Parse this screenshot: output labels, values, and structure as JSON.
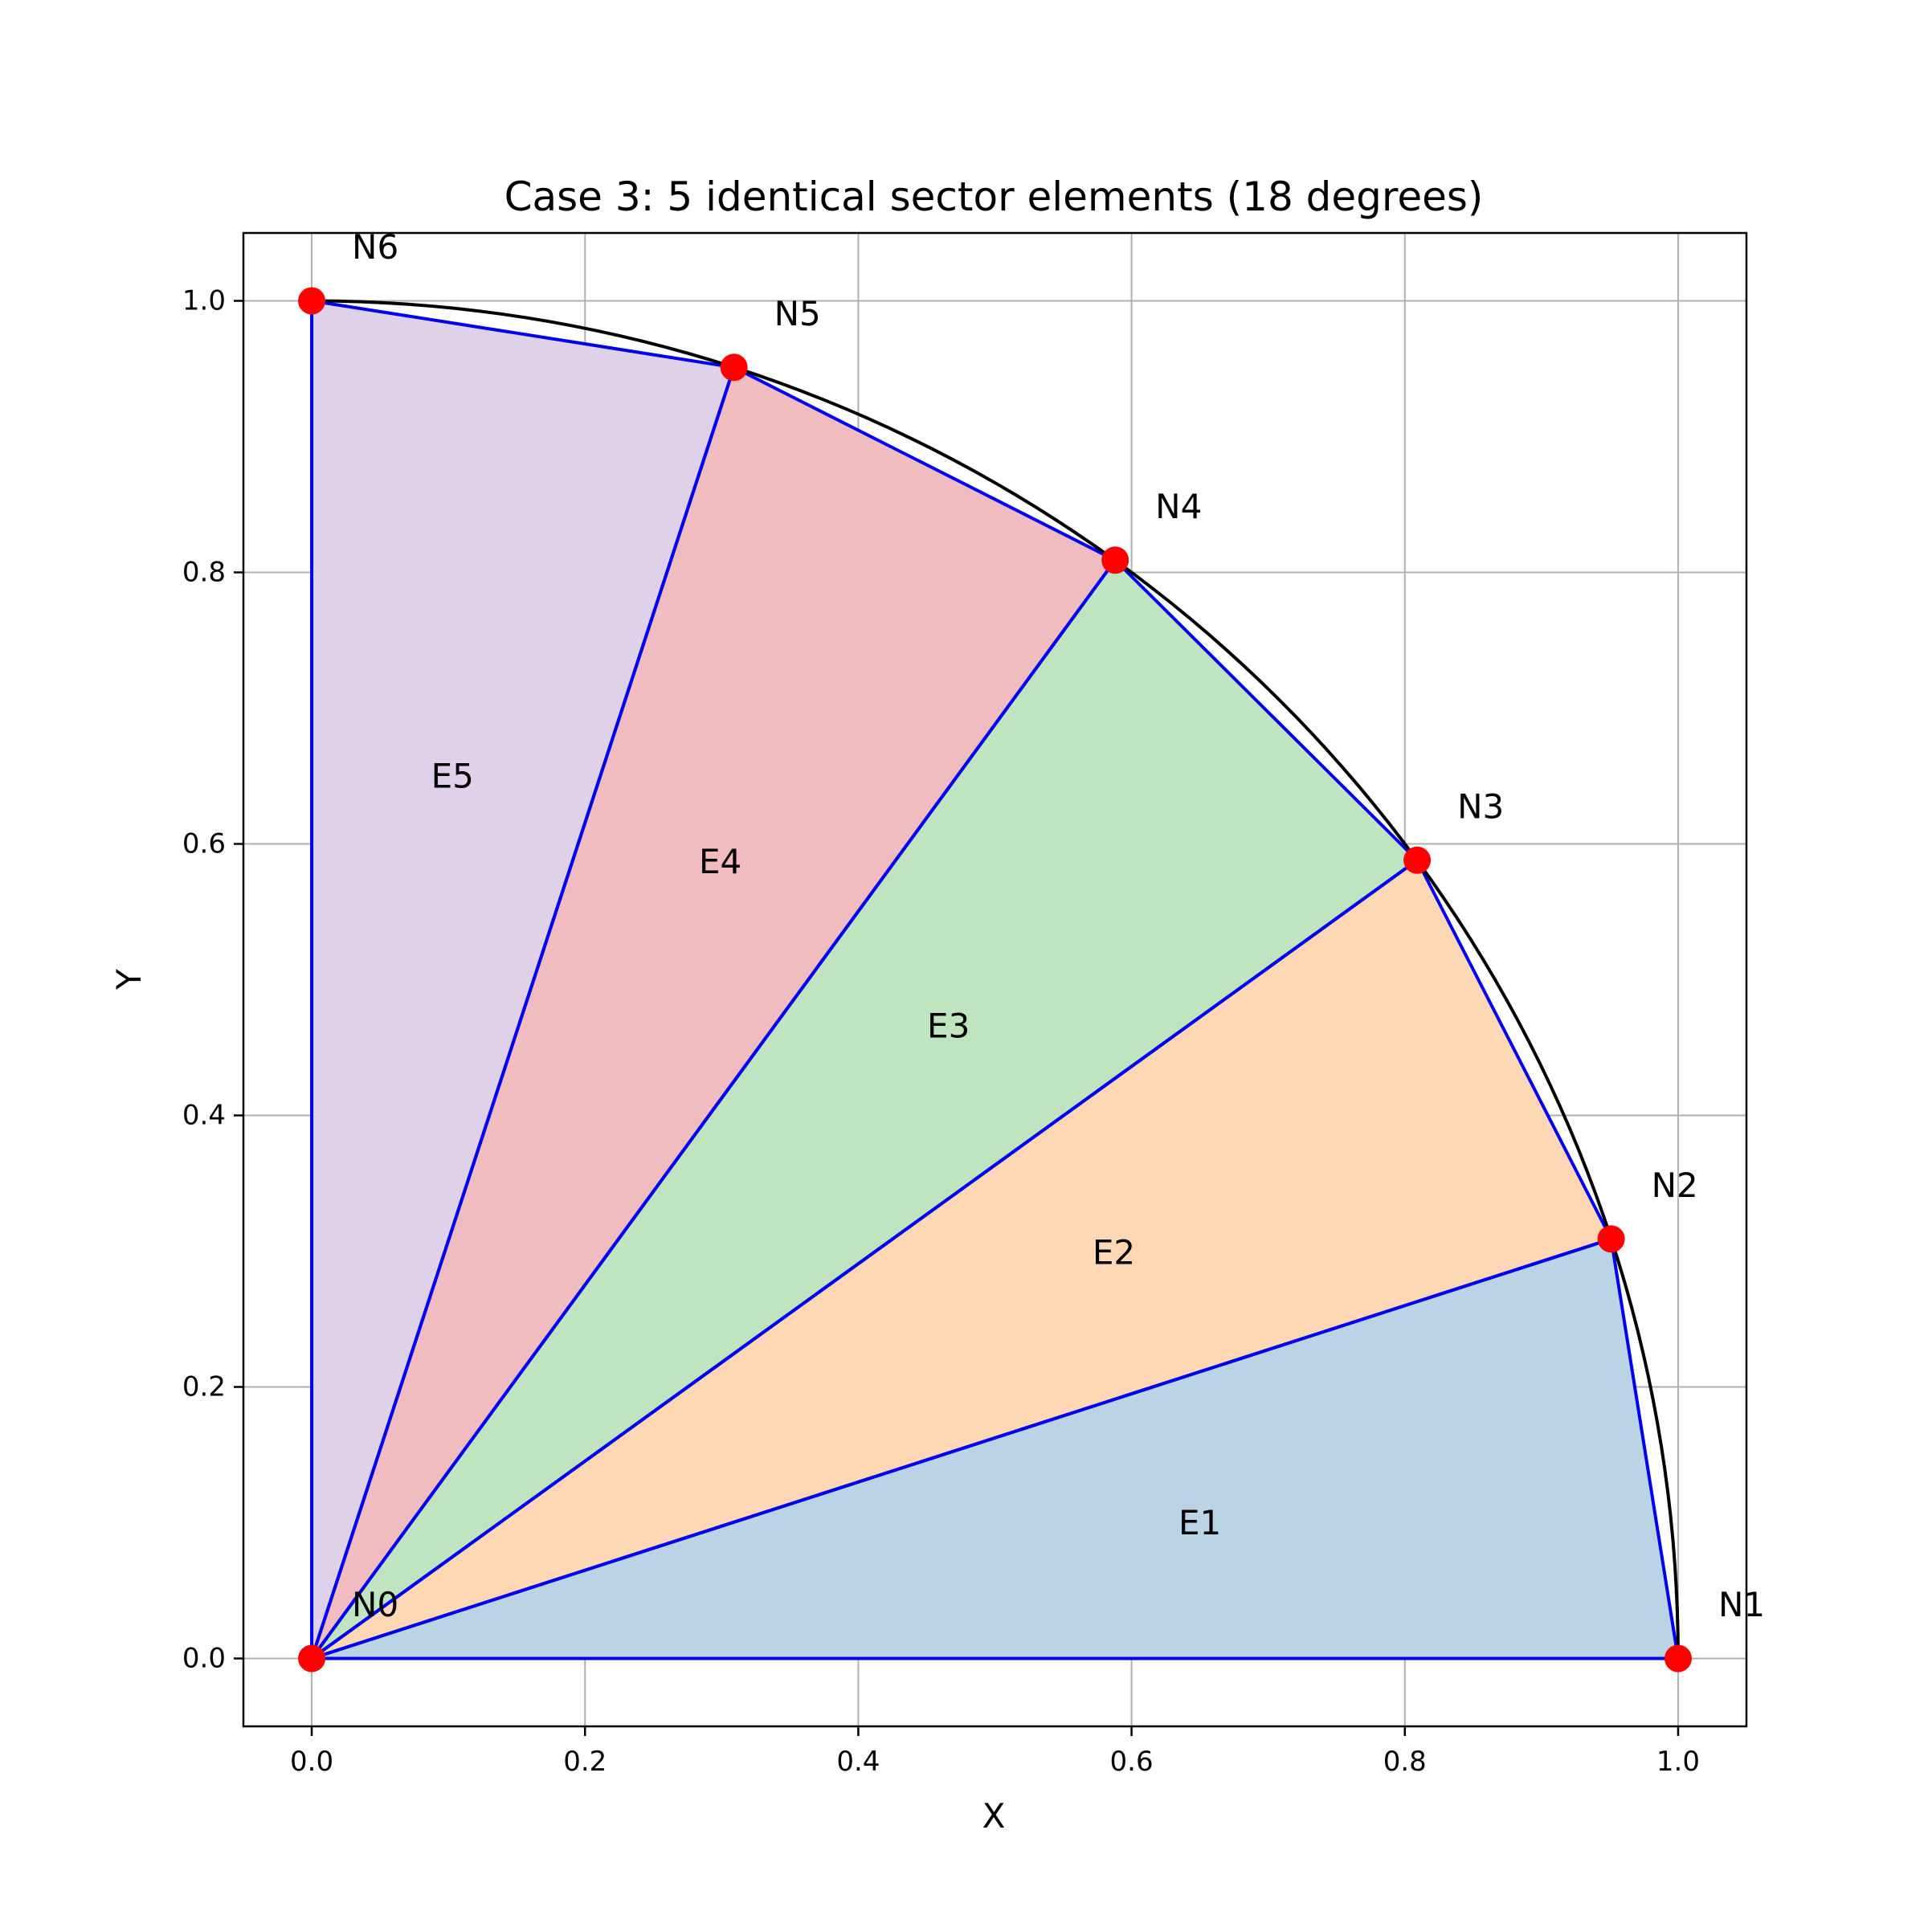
{
  "title": "Case 3: 5 identical sector elements (18 degrees)",
  "xlabel": "X",
  "ylabel": "Y",
  "chart_data": {
    "type": "diagram",
    "title": "Case 3: 5 identical sector elements (18 degrees)",
    "xlabel": "X",
    "ylabel": "Y",
    "xlim": [
      -0.05,
      1.05
    ],
    "ylim": [
      -0.05,
      1.05
    ],
    "grid": true,
    "xticks": [
      0.0,
      0.2,
      0.4,
      0.6,
      0.8,
      1.0
    ],
    "yticks": [
      0.0,
      0.2,
      0.4,
      0.6,
      0.8,
      1.0
    ],
    "xtick_labels": [
      "0.0",
      "0.2",
      "0.4",
      "0.6",
      "0.8",
      "1.0"
    ],
    "ytick_labels": [
      "0.0",
      "0.2",
      "0.4",
      "0.6",
      "0.8",
      "1.0"
    ],
    "arc": {
      "center": [
        0,
        0
      ],
      "radius": 1.0,
      "start_deg": 0,
      "end_deg": 90,
      "color": "#000000"
    },
    "nodes": [
      {
        "label": "N0",
        "x": 0.0,
        "y": 0.0
      },
      {
        "label": "N1",
        "x": 1.0,
        "y": 0.0
      },
      {
        "label": "N2",
        "x": 0.951,
        "y": 0.309
      },
      {
        "label": "N3",
        "x": 0.809,
        "y": 0.588
      },
      {
        "label": "N4",
        "x": 0.588,
        "y": 0.809
      },
      {
        "label": "N5",
        "x": 0.309,
        "y": 0.951
      },
      {
        "label": "N6",
        "x": 0.0,
        "y": 1.0
      }
    ],
    "elements": [
      {
        "label": "E1",
        "nodes": [
          0,
          1,
          2
        ],
        "label_x": 0.65,
        "label_y": 0.1,
        "color": "#bad4e6"
      },
      {
        "label": "E2",
        "nodes": [
          0,
          2,
          3
        ],
        "label_x": 0.587,
        "label_y": 0.299,
        "color": "#fed7b5"
      },
      {
        "label": "E3",
        "nodes": [
          0,
          3,
          4
        ],
        "label_x": 0.466,
        "label_y": 0.466,
        "color": "#c0e3c0"
      },
      {
        "label": "E4",
        "nodes": [
          0,
          4,
          5
        ],
        "label_x": 0.299,
        "label_y": 0.587,
        "color": "#f1bcbf"
      },
      {
        "label": "E5",
        "nodes": [
          0,
          5,
          6
        ],
        "label_x": 0.103,
        "label_y": 0.65,
        "color": "#dfd1ea"
      }
    ],
    "edge_color": "#0000ee",
    "node_color": "#ff0000"
  }
}
